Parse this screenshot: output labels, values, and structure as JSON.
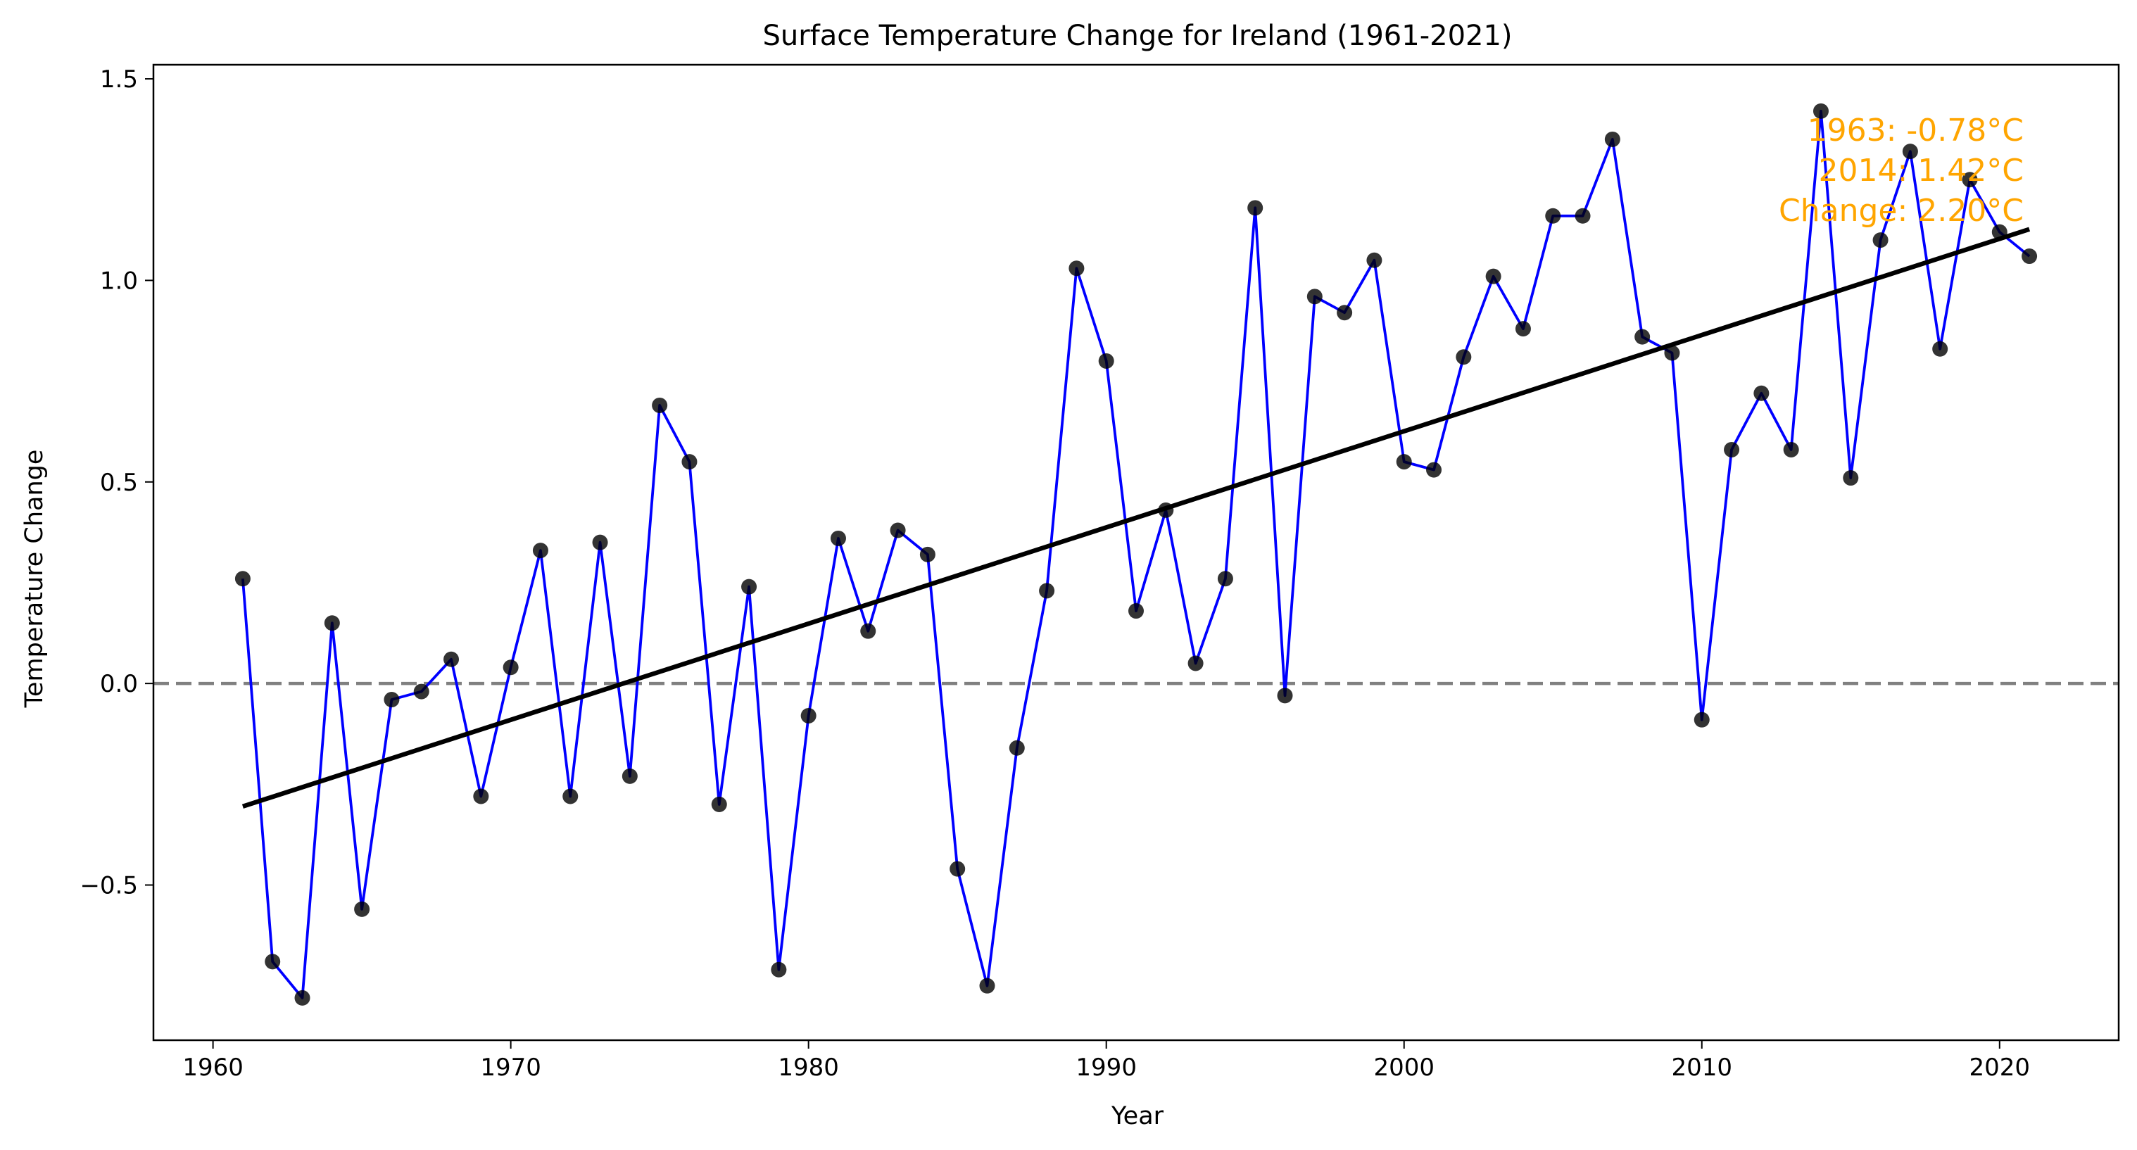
{
  "chart_data": {
    "type": "line",
    "title": "Surface Temperature Change for Ireland (1961-2021)",
    "xlabel": "Year",
    "ylabel": "Temperature Change",
    "xlim": [
      1958.0,
      2024.0
    ],
    "ylim": [
      -0.885,
      1.535
    ],
    "xticks": [
      1960,
      1970,
      1980,
      1990,
      2000,
      2010,
      2020
    ],
    "yticks": [
      -0.5,
      0.0,
      0.5,
      1.0,
      1.5
    ],
    "ytick_labels": [
      "−0.5",
      "0.0",
      "0.5",
      "1.0",
      "1.5"
    ],
    "grid": false,
    "x": [
      1961,
      1962,
      1963,
      1964,
      1965,
      1966,
      1967,
      1968,
      1969,
      1970,
      1971,
      1972,
      1973,
      1974,
      1975,
      1976,
      1977,
      1978,
      1979,
      1980,
      1981,
      1982,
      1983,
      1984,
      1985,
      1986,
      1987,
      1988,
      1989,
      1990,
      1991,
      1992,
      1993,
      1994,
      1995,
      1996,
      1997,
      1998,
      1999,
      2000,
      2001,
      2002,
      2003,
      2004,
      2005,
      2006,
      2007,
      2008,
      2009,
      2010,
      2011,
      2012,
      2013,
      2014,
      2015,
      2016,
      2017,
      2018,
      2019,
      2020,
      2021
    ],
    "series": [
      {
        "values": [
          0.26,
          -0.69,
          -0.78,
          0.15,
          -0.56,
          -0.04,
          -0.02,
          0.06,
          -0.28,
          0.04,
          0.33,
          -0.28,
          0.35,
          -0.23,
          0.69,
          0.55,
          -0.3,
          0.24,
          -0.71,
          -0.08,
          0.36,
          0.13,
          0.38,
          0.32,
          -0.46,
          -0.75,
          -0.16,
          0.23,
          1.03,
          0.8,
          0.18,
          0.43,
          0.05,
          0.26,
          1.18,
          -0.03,
          0.96,
          0.92,
          1.05,
          0.55,
          0.53,
          0.81,
          1.01,
          0.88,
          1.16,
          1.16,
          1.35,
          0.86,
          0.82,
          -0.09,
          0.58,
          0.72,
          0.58,
          1.42,
          0.51,
          1.1,
          1.32,
          0.83,
          1.25,
          1.12,
          1.06
        ],
        "line_color": "#0000ff",
        "marker_color": "#000000"
      }
    ],
    "trend_line": {
      "x": [
        1961,
        2021
      ],
      "y": [
        -0.305,
        1.127
      ],
      "color": "#000000"
    },
    "reference_line": {
      "y": 0.0,
      "color": "#808080",
      "style": "dashed"
    },
    "annotations": [
      {
        "text": "1963: -0.78°C"
      },
      {
        "text": "2014: 1.42°C"
      },
      {
        "text": "Change: 2.20°C"
      }
    ],
    "annotation_color": "#ffa500"
  }
}
